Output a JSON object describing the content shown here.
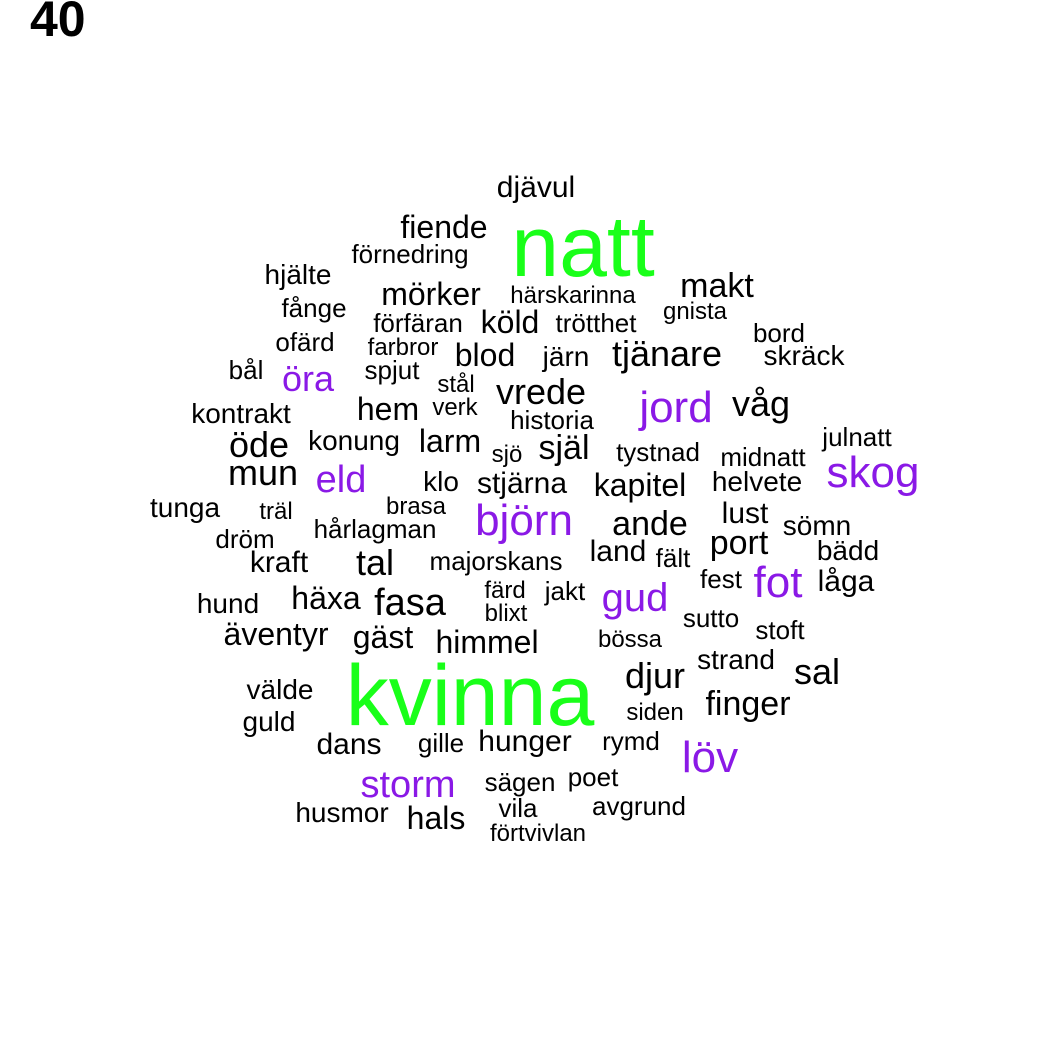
{
  "panel_number": "40",
  "colors": {
    "large": "#19ff19",
    "medium": "#8a19e6",
    "small": "#000000"
  },
  "words": [
    {
      "text": "natt",
      "group": "large"
    },
    {
      "text": "kvinna",
      "group": "large"
    },
    {
      "text": "jord",
      "group": "medium"
    },
    {
      "text": "skog",
      "group": "medium"
    },
    {
      "text": "björn",
      "group": "medium"
    },
    {
      "text": "fot",
      "group": "medium"
    },
    {
      "text": "gud",
      "group": "medium"
    },
    {
      "text": "eld",
      "group": "medium"
    },
    {
      "text": "öra",
      "group": "medium"
    },
    {
      "text": "löv",
      "group": "medium"
    },
    {
      "text": "storm",
      "group": "medium"
    },
    {
      "text": "djävul",
      "group": "small"
    },
    {
      "text": "fiende",
      "group": "small"
    },
    {
      "text": "förnedring",
      "group": "small"
    },
    {
      "text": "hjälte",
      "group": "small"
    },
    {
      "text": "mörker",
      "group": "small"
    },
    {
      "text": "härskarinna",
      "group": "small"
    },
    {
      "text": "makt",
      "group": "small"
    },
    {
      "text": "fånge",
      "group": "small"
    },
    {
      "text": "förfäran",
      "group": "small"
    },
    {
      "text": "köld",
      "group": "small"
    },
    {
      "text": "trötthet",
      "group": "small"
    },
    {
      "text": "gnista",
      "group": "small"
    },
    {
      "text": "ofärd",
      "group": "small"
    },
    {
      "text": "bord",
      "group": "small"
    },
    {
      "text": "farbror",
      "group": "small"
    },
    {
      "text": "blod",
      "group": "small"
    },
    {
      "text": "järn",
      "group": "small"
    },
    {
      "text": "tjänare",
      "group": "small"
    },
    {
      "text": "skräck",
      "group": "small"
    },
    {
      "text": "bål",
      "group": "small"
    },
    {
      "text": "spjut",
      "group": "small"
    },
    {
      "text": "stål",
      "group": "small"
    },
    {
      "text": "vrede",
      "group": "small"
    },
    {
      "text": "våg",
      "group": "small"
    },
    {
      "text": "kontrakt",
      "group": "small"
    },
    {
      "text": "hem",
      "group": "small"
    },
    {
      "text": "verk",
      "group": "small"
    },
    {
      "text": "historia",
      "group": "small"
    },
    {
      "text": "julnatt",
      "group": "small"
    },
    {
      "text": "öde",
      "group": "small"
    },
    {
      "text": "konung",
      "group": "small"
    },
    {
      "text": "larm",
      "group": "small"
    },
    {
      "text": "sjö",
      "group": "small"
    },
    {
      "text": "själ",
      "group": "small"
    },
    {
      "text": "tystnad",
      "group": "small"
    },
    {
      "text": "midnatt",
      "group": "small"
    },
    {
      "text": "mun",
      "group": "small"
    },
    {
      "text": "klo",
      "group": "small"
    },
    {
      "text": "stjärna",
      "group": "small"
    },
    {
      "text": "kapitel",
      "group": "small"
    },
    {
      "text": "helvete",
      "group": "small"
    },
    {
      "text": "tunga",
      "group": "small"
    },
    {
      "text": "träl",
      "group": "small"
    },
    {
      "text": "brasa",
      "group": "small"
    },
    {
      "text": "lust",
      "group": "small"
    },
    {
      "text": "hårlagman",
      "group": "small"
    },
    {
      "text": "ande",
      "group": "small"
    },
    {
      "text": "sömn",
      "group": "small"
    },
    {
      "text": "dröm",
      "group": "small"
    },
    {
      "text": "port",
      "group": "small"
    },
    {
      "text": "bädd",
      "group": "small"
    },
    {
      "text": "land",
      "group": "small"
    },
    {
      "text": "fält",
      "group": "small"
    },
    {
      "text": "kraft",
      "group": "small"
    },
    {
      "text": "tal",
      "group": "small"
    },
    {
      "text": "majorskans",
      "group": "small"
    },
    {
      "text": "fest",
      "group": "small"
    },
    {
      "text": "låga",
      "group": "small"
    },
    {
      "text": "färd",
      "group": "small"
    },
    {
      "text": "jakt",
      "group": "small"
    },
    {
      "text": "hund",
      "group": "small"
    },
    {
      "text": "häxa",
      "group": "small"
    },
    {
      "text": "fasa",
      "group": "small"
    },
    {
      "text": "blixt",
      "group": "small"
    },
    {
      "text": "sutto",
      "group": "small"
    },
    {
      "text": "stoft",
      "group": "small"
    },
    {
      "text": "äventyr",
      "group": "small"
    },
    {
      "text": "gäst",
      "group": "small"
    },
    {
      "text": "himmel",
      "group": "small"
    },
    {
      "text": "bössa",
      "group": "small"
    },
    {
      "text": "strand",
      "group": "small"
    },
    {
      "text": "djur",
      "group": "small"
    },
    {
      "text": "sal",
      "group": "small"
    },
    {
      "text": "välde",
      "group": "small"
    },
    {
      "text": "finger",
      "group": "small"
    },
    {
      "text": "siden",
      "group": "small"
    },
    {
      "text": "guld",
      "group": "small"
    },
    {
      "text": "dans",
      "group": "small"
    },
    {
      "text": "gille",
      "group": "small"
    },
    {
      "text": "hunger",
      "group": "small"
    },
    {
      "text": "rymd",
      "group": "small"
    },
    {
      "text": "sägen",
      "group": "small"
    },
    {
      "text": "poet",
      "group": "small"
    },
    {
      "text": "husmor",
      "group": "small"
    },
    {
      "text": "hals",
      "group": "small"
    },
    {
      "text": "vila",
      "group": "small"
    },
    {
      "text": "avgrund",
      "group": "small"
    },
    {
      "text": "förtvivlan",
      "group": "small"
    }
  ]
}
